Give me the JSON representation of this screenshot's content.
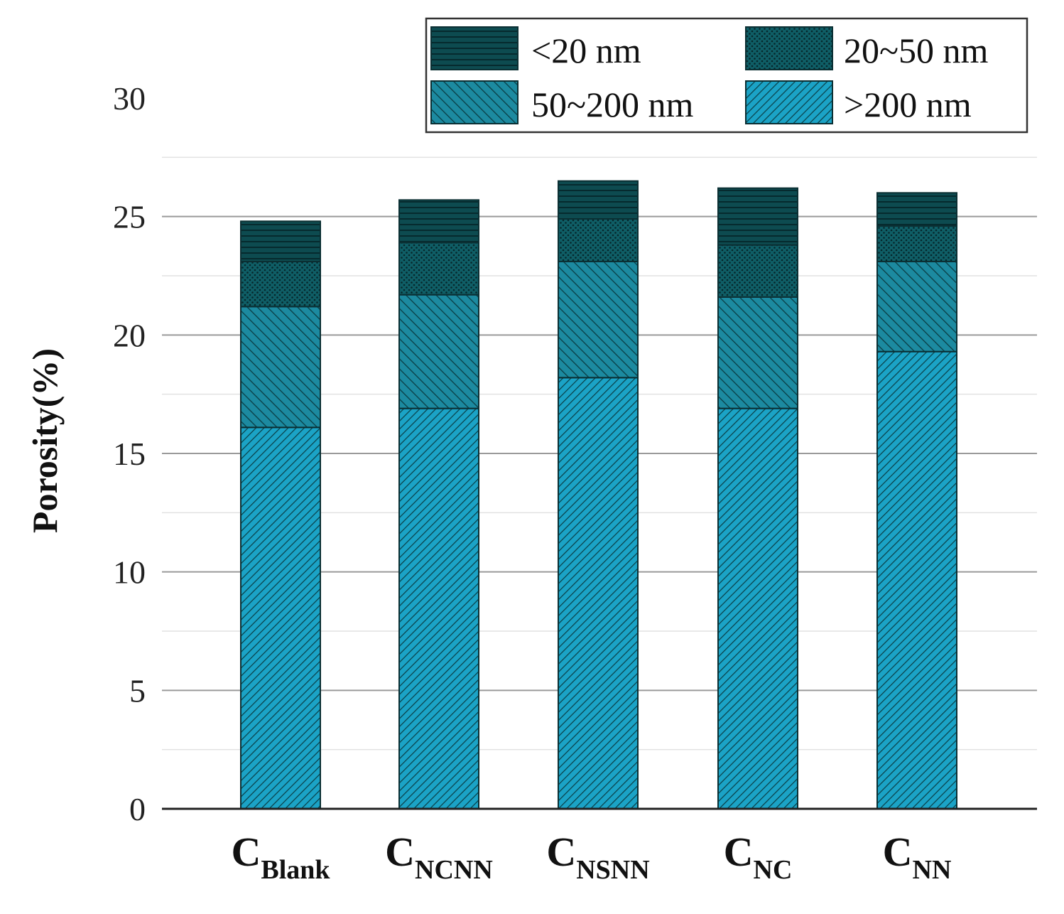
{
  "chart_data": {
    "type": "bar",
    "stacked": true,
    "ylabel": "Porosity(%)",
    "ylim": [
      0,
      30
    ],
    "yticks": [
      "0",
      "5",
      "10",
      "15",
      "20",
      "25",
      "30"
    ],
    "grid": "horizontal",
    "legend_position": "top-right",
    "categories": [
      {
        "main": "C",
        "sub": "Blank"
      },
      {
        "main": "C",
        "sub": "NCNN"
      },
      {
        "main": "C",
        "sub": "NSNN"
      },
      {
        "main": "C",
        "sub": "NC"
      },
      {
        "main": "C",
        "sub": "NN"
      }
    ],
    "series": [
      {
        "name": ">200 nm",
        "color": "#1ba3c6",
        "values": [
          16.1,
          16.9,
          18.2,
          16.9,
          19.3
        ]
      },
      {
        "name": "50~200 nm",
        "color": "#1c8aa0",
        "values": [
          5.1,
          4.8,
          4.9,
          4.7,
          3.8
        ]
      },
      {
        "name": "20~50 nm",
        "color": "#0f5e66",
        "values": [
          1.9,
          2.2,
          1.8,
          2.2,
          1.5
        ]
      },
      {
        "name": "<20 nm",
        "color": "#0d4b50",
        "values": [
          1.7,
          1.8,
          1.6,
          2.4,
          1.4
        ]
      }
    ]
  }
}
